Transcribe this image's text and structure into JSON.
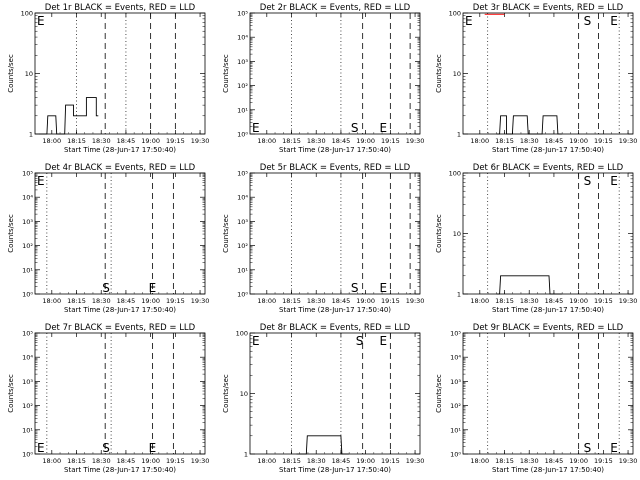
{
  "figure": {
    "xlabel": "Start Time (28-Jun-17 17:50:40)",
    "ylabel": "Counts/sec",
    "xticks": [
      "18:00",
      "18:15",
      "18:30",
      "18:45",
      "19:00",
      "19:15",
      "19:30"
    ]
  },
  "chart_data": [
    {
      "type": "line",
      "title": "Det 1r BLACK = Events, RED = LLD",
      "scale": "log",
      "ylim": [
        1,
        100
      ],
      "yticks": [
        "1",
        "10",
        "100"
      ],
      "markers": [
        {
          "label": "E",
          "x": 17.85,
          "pos": "top"
        }
      ],
      "dotted_lines": [
        18.25,
        18.75
      ],
      "dashed_lines": [
        18.54,
        19.0,
        19.25
      ],
      "series": [
        {
          "color": "#000000",
          "x": [
            17.87,
            17.95,
            17.96,
            18.04,
            18.05,
            18.13,
            18.14,
            18.22,
            18.22,
            18.35,
            18.35,
            18.45,
            18.45,
            18.47
          ],
          "y": [
            1,
            1,
            2,
            2,
            1,
            1,
            3,
            3,
            2,
            2,
            4,
            4,
            2,
            2
          ]
        }
      ]
    },
    {
      "type": "line",
      "title": "Det 2r BLACK = Events, RED = LLD",
      "scale": "log",
      "ylim": [
        1,
        100000
      ],
      "yticks": [
        "10⁰",
        "10¹",
        "10²",
        "10³",
        "10⁴",
        "10⁵"
      ],
      "markers": [
        {
          "label": "S",
          "x": 18.85,
          "pos": "bottom"
        },
        {
          "label": "E",
          "x": 19.14,
          "pos": "bottom"
        },
        {
          "label": "E",
          "x": 17.85,
          "pos": "bottom"
        }
      ],
      "dotted_lines": [
        18.25,
        18.75
      ],
      "dashed_lines": [
        18.97,
        19.25,
        19.45
      ],
      "series": []
    },
    {
      "type": "line",
      "title": "Det 3r BLACK = Events, RED = LLD",
      "scale": "log",
      "ylim": [
        1,
        100
      ],
      "yticks": [
        "1",
        "10",
        "100"
      ],
      "markers": [
        {
          "label": "E",
          "x": 17.85,
          "pos": "top"
        },
        {
          "label": "S",
          "x": 19.05,
          "pos": "top"
        },
        {
          "label": "E",
          "x": 19.32,
          "pos": "top"
        }
      ],
      "dotted_lines": [
        18.08,
        19.41
      ],
      "dashed_lines": [
        19.0,
        19.2
      ],
      "series": [
        {
          "color": "#ff0000",
          "x": [
            18.05,
            18.25
          ],
          "y": [
            95,
            95
          ]
        },
        {
          "color": "#000000",
          "x": [
            18.17,
            18.2,
            18.21,
            18.27,
            18.27,
            18.33,
            18.34,
            18.48,
            18.49,
            18.63,
            18.64,
            18.78,
            18.79,
            18.83
          ],
          "y": [
            1,
            1,
            2,
            2,
            1,
            1,
            2,
            2,
            1,
            1,
            2,
            2,
            1,
            1
          ]
        }
      ]
    },
    {
      "type": "line",
      "title": "Det 4r BLACK = Events, RED = LLD",
      "scale": "log",
      "ylim": [
        1,
        100000
      ],
      "yticks": [
        "10⁰",
        "10¹",
        "10²",
        "10³",
        "10⁴",
        "10⁵"
      ],
      "markers": [
        {
          "label": "S",
          "x": 18.51,
          "pos": "bottom"
        },
        {
          "label": "E",
          "x": 18.98,
          "pos": "bottom"
        },
        {
          "label": "E",
          "x": 17.85,
          "pos": "top"
        }
      ],
      "dotted_lines": [
        17.95,
        18.6
      ],
      "dashed_lines": [
        18.54,
        19.02,
        19.23
      ],
      "series": []
    },
    {
      "type": "line",
      "title": "Det 5r BLACK = Events, RED = LLD",
      "scale": "log",
      "ylim": [
        1,
        100000
      ],
      "yticks": [
        "10⁰",
        "10¹",
        "10²",
        "10³",
        "10⁴",
        "10⁵"
      ],
      "markers": [
        {
          "label": "S",
          "x": 18.85,
          "pos": "bottom"
        },
        {
          "label": "E",
          "x": 19.14,
          "pos": "bottom"
        }
      ],
      "dotted_lines": [
        18.25,
        18.75
      ],
      "dashed_lines": [
        18.97,
        19.25,
        19.45
      ],
      "series": []
    },
    {
      "type": "line",
      "title": "Det 6r BLACK = Events, RED = LLD",
      "scale": "log",
      "ylim": [
        1,
        100
      ],
      "yticks": [
        "1",
        "10",
        "100"
      ],
      "markers": [
        {
          "label": "S",
          "x": 19.05,
          "pos": "top"
        },
        {
          "label": "E",
          "x": 19.32,
          "pos": "top"
        }
      ],
      "dotted_lines": [
        18.08,
        19.41
      ],
      "dashed_lines": [
        19.0,
        19.2
      ],
      "series": [
        {
          "color": "#000000",
          "x": [
            18.17,
            18.2,
            18.21,
            18.4,
            18.41,
            18.55,
            18.56,
            18.7,
            18.71,
            18.83
          ],
          "y": [
            1,
            1,
            2,
            2,
            2,
            2,
            2,
            2,
            1,
            1
          ]
        }
      ]
    },
    {
      "type": "line",
      "title": "Det 7r BLACK = Events, RED = LLD",
      "scale": "log",
      "ylim": [
        1,
        100000
      ],
      "yticks": [
        "10⁰",
        "10¹",
        "10²",
        "10³",
        "10⁴",
        "10⁵"
      ],
      "markers": [
        {
          "label": "S",
          "x": 18.51,
          "pos": "bottom"
        },
        {
          "label": "E",
          "x": 18.98,
          "pos": "bottom"
        },
        {
          "label": "E",
          "x": 17.85,
          "pos": "bottom"
        }
      ],
      "dotted_lines": [
        17.95,
        18.6
      ],
      "dashed_lines": [
        18.54,
        19.02,
        19.23
      ],
      "series": []
    },
    {
      "type": "line",
      "title": "Det 8r BLACK = Events, RED = LLD",
      "scale": "log",
      "ylim": [
        1,
        100
      ],
      "yticks": [
        "1",
        "10",
        "100"
      ],
      "markers": [
        {
          "label": "E",
          "x": 17.85,
          "pos": "top"
        },
        {
          "label": "S",
          "x": 18.9,
          "pos": "top"
        },
        {
          "label": "E",
          "x": 19.14,
          "pos": "top"
        }
      ],
      "dotted_lines": [
        18.25,
        18.75
      ],
      "dashed_lines": [
        18.97,
        19.25
      ],
      "series": [
        {
          "color": "#000000",
          "x": [
            18.3,
            18.4,
            18.41,
            18.5,
            18.51,
            18.6,
            18.61,
            18.75,
            18.76,
            18.83
          ],
          "y": [
            1,
            1,
            2,
            2,
            2,
            2,
            2,
            2,
            1,
            1
          ]
        }
      ]
    },
    {
      "type": "line",
      "title": "Det 9r BLACK = Events, RED = LLD",
      "scale": "log",
      "ylim": [
        1,
        100000
      ],
      "yticks": [
        "10⁰",
        "10¹",
        "10²",
        "10³",
        "10⁴",
        "10⁵"
      ],
      "markers": [
        {
          "label": "S",
          "x": 19.05,
          "pos": "bottom"
        },
        {
          "label": "E",
          "x": 19.32,
          "pos": "bottom"
        }
      ],
      "dotted_lines": [
        18.08,
        19.41
      ],
      "dashed_lines": [
        19.0,
        19.2
      ],
      "series": []
    }
  ]
}
